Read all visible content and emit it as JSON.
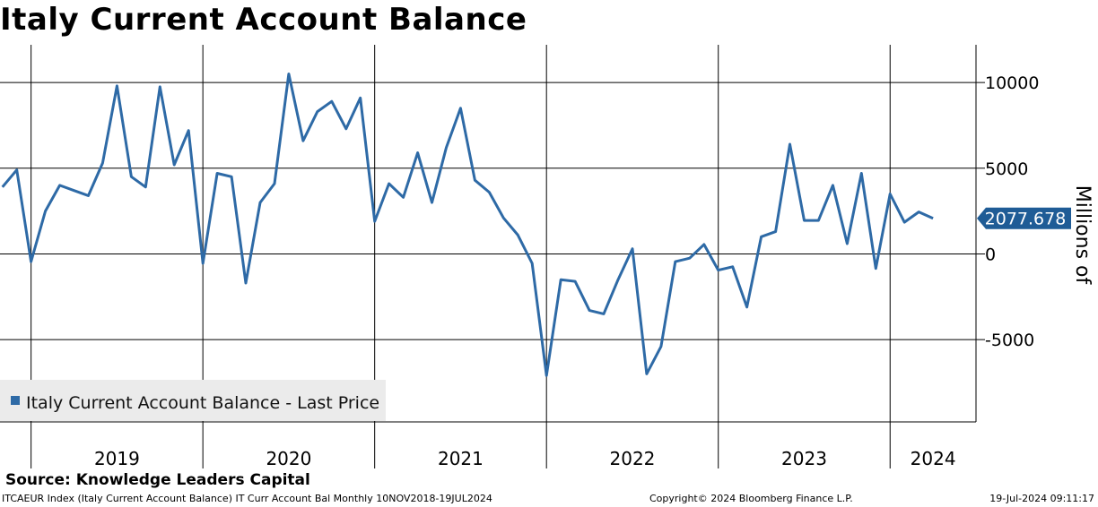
{
  "title": "Italy Current Account Balance",
  "source": "Source: Knowledge Leaders Capital",
  "footer": {
    "left": "ITCAEUR Index (Italy Current Account Balance) IT Curr Account Bal  Monthly 10NOV2018-19JUL2024",
    "middle": "Copyright© 2024 Bloomberg Finance L.P.",
    "right": "19-Jul-2024 09:11:17"
  },
  "colors": {
    "line": "#2e6aa6",
    "label_bg": "#1f5c96",
    "legend_bg": "#ebebeb"
  },
  "chart_data": {
    "type": "line",
    "title": "Italy Current Account Balance",
    "ylabel": "Millions of",
    "ylim": [
      -9800,
      12200
    ],
    "yticks": [
      10000,
      5000,
      0,
      -5000
    ],
    "ytick_labels": [
      "10000",
      "5000",
      "0",
      "-5000"
    ],
    "xlim": [
      "2018-11",
      "2024-07"
    ],
    "year_labels": [
      "2019",
      "2020",
      "2021",
      "2022",
      "2023",
      "2024"
    ],
    "year_boundaries": [
      "2019-01",
      "2020-01",
      "2021-01",
      "2022-01",
      "2023-01",
      "2024-01"
    ],
    "legend": "Italy Current Account Balance - Last Price",
    "last_value_label": "2077.678",
    "series": [
      {
        "name": "Italy Current Account Balance - Last Price",
        "start": "2018-11",
        "values": [
          3900,
          4900,
          -450,
          2500,
          4000,
          3700,
          3400,
          5300,
          9800,
          4500,
          3900,
          9750,
          5200,
          7200,
          -550,
          4700,
          4500,
          -1700,
          3000,
          4100,
          10500,
          6600,
          8300,
          8900,
          7300,
          9100,
          1900,
          4100,
          3300,
          5900,
          3000,
          6200,
          8500,
          4300,
          3600,
          2100,
          1100,
          -550,
          -7100,
          -1500,
          -1600,
          -3300,
          -3500,
          -1500,
          300,
          -7000,
          -5400,
          -450,
          -250,
          550,
          -950,
          -750,
          -3100,
          1000,
          1300,
          6400,
          1950,
          1950,
          4000,
          600,
          4700,
          -850,
          3500,
          1850,
          2450,
          2077.678
        ]
      }
    ]
  }
}
